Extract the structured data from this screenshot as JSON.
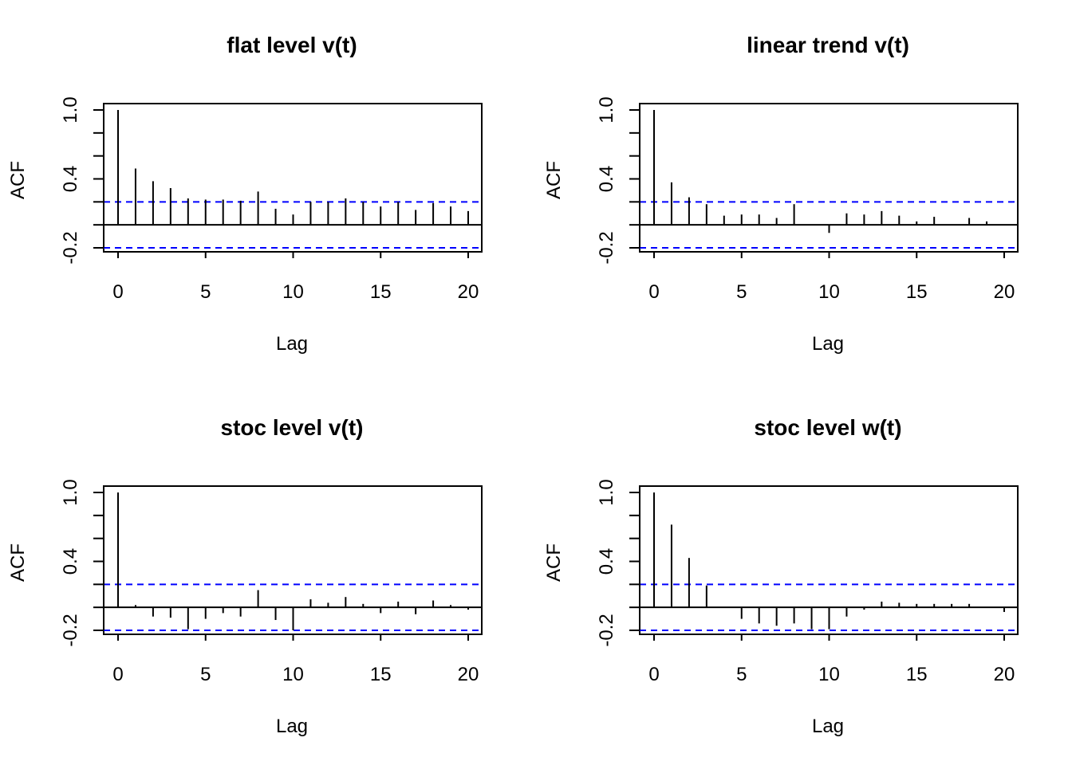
{
  "chart_data": [
    {
      "type": "bar",
      "title": "flat level v(t)",
      "xlabel": "Lag",
      "ylabel": "ACF",
      "xlim": [
        0,
        20
      ],
      "ylim": [
        -0.2,
        1.0
      ],
      "x_ticks": [
        "0",
        "5",
        "10",
        "15",
        "20"
      ],
      "y_ticks": [
        "-0.2",
        "0.4",
        "1.0"
      ],
      "conf_limit": 0.2,
      "lags": [
        0,
        1,
        2,
        3,
        4,
        5,
        6,
        7,
        8,
        9,
        10,
        11,
        12,
        13,
        14,
        15,
        16,
        17,
        18,
        19,
        20
      ],
      "values": [
        1.0,
        0.49,
        0.38,
        0.32,
        0.23,
        0.22,
        0.22,
        0.21,
        0.29,
        0.14,
        0.09,
        0.2,
        0.2,
        0.23,
        0.2,
        0.16,
        0.2,
        0.13,
        0.19,
        0.16,
        0.12
      ],
      "conf_color": "#0000ff"
    },
    {
      "type": "bar",
      "title": "linear trend v(t)",
      "xlabel": "Lag",
      "ylabel": "ACF",
      "xlim": [
        0,
        20
      ],
      "ylim": [
        -0.2,
        1.0
      ],
      "x_ticks": [
        "0",
        "5",
        "10",
        "15",
        "20"
      ],
      "y_ticks": [
        "-0.2",
        "0.4",
        "1.0"
      ],
      "conf_limit": 0.2,
      "lags": [
        0,
        1,
        2,
        3,
        4,
        5,
        6,
        7,
        8,
        9,
        10,
        11,
        12,
        13,
        14,
        15,
        16,
        17,
        18,
        19,
        20
      ],
      "values": [
        1.0,
        0.37,
        0.24,
        0.18,
        0.08,
        0.09,
        0.09,
        0.06,
        0.18,
        0.0,
        -0.07,
        0.1,
        0.09,
        0.12,
        0.08,
        0.03,
        0.07,
        0.0,
        0.06,
        0.03,
        0.0
      ],
      "conf_color": "#0000ff"
    },
    {
      "type": "bar",
      "title": "stoc level v(t)",
      "xlabel": "Lag",
      "ylabel": "ACF",
      "xlim": [
        0,
        20
      ],
      "ylim": [
        -0.2,
        1.0
      ],
      "x_ticks": [
        "0",
        "5",
        "10",
        "15",
        "20"
      ],
      "y_ticks": [
        "-0.2",
        "0.4",
        "1.0"
      ],
      "conf_limit": 0.2,
      "lags": [
        0,
        1,
        2,
        3,
        4,
        5,
        6,
        7,
        8,
        9,
        10,
        11,
        12,
        13,
        14,
        15,
        16,
        17,
        18,
        19,
        20
      ],
      "values": [
        1.0,
        0.02,
        -0.08,
        -0.09,
        -0.19,
        -0.1,
        -0.05,
        -0.08,
        0.15,
        -0.11,
        -0.2,
        0.07,
        0.04,
        0.09,
        0.03,
        -0.05,
        0.05,
        -0.06,
        0.06,
        0.02,
        -0.02
      ],
      "conf_color": "#0000ff"
    },
    {
      "type": "bar",
      "title": "stoc level w(t)",
      "xlabel": "Lag",
      "ylabel": "ACF",
      "xlim": [
        0,
        20
      ],
      "ylim": [
        -0.2,
        1.0
      ],
      "x_ticks": [
        "0",
        "5",
        "10",
        "15",
        "20"
      ],
      "y_ticks": [
        "-0.2",
        "0.4",
        "1.0"
      ],
      "conf_limit": 0.2,
      "lags": [
        0,
        1,
        2,
        3,
        4,
        5,
        6,
        7,
        8,
        9,
        10,
        11,
        12,
        13,
        14,
        15,
        16,
        17,
        18,
        19,
        20
      ],
      "values": [
        1.0,
        0.72,
        0.43,
        0.19,
        0.0,
        -0.1,
        -0.14,
        -0.16,
        -0.14,
        -0.19,
        -0.19,
        -0.08,
        -0.02,
        0.05,
        0.04,
        0.03,
        0.03,
        0.03,
        0.03,
        0.0,
        -0.04
      ],
      "conf_color": "#0000ff"
    }
  ]
}
